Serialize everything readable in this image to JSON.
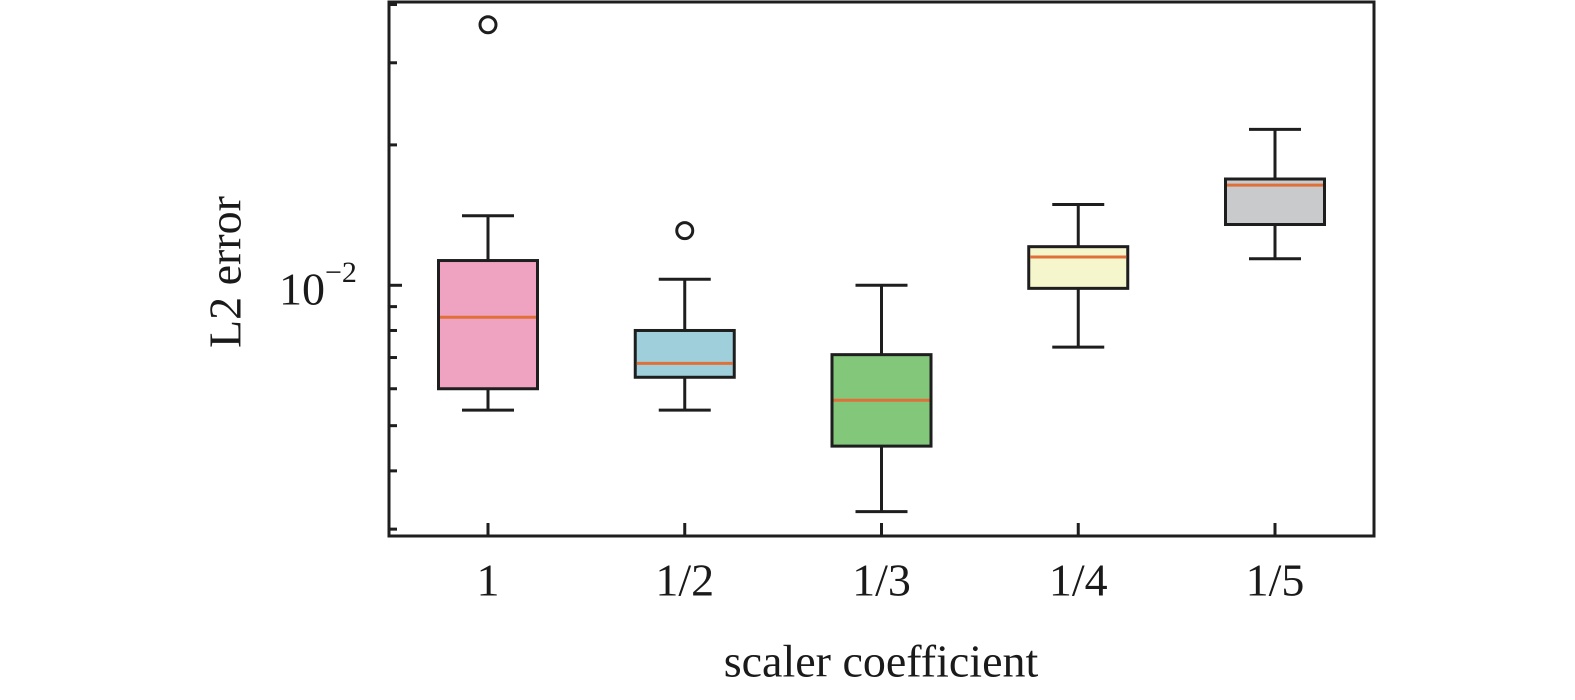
{
  "chart_data": {
    "type": "box",
    "title": "",
    "xlabel": "scaler coefficient",
    "ylabel": "L2 error",
    "yscale": "log",
    "ylim": [
      0.0029,
      0.0405
    ],
    "yticks_major": [
      {
        "value": 0.01,
        "label_base": "10",
        "label_exp": "−2"
      }
    ],
    "yticks_minor": [
      0.003,
      0.004,
      0.005,
      0.006,
      0.007,
      0.008,
      0.009,
      0.02,
      0.03,
      0.04
    ],
    "grid": false,
    "legend": null,
    "categories": [
      "1",
      "1/2",
      "1/3",
      "1/4",
      "1/5"
    ],
    "boxes": [
      {
        "label": "1",
        "whisker_low": 0.0054,
        "q1": 0.006,
        "median": 0.00854,
        "q3": 0.0113,
        "whisker_high": 0.0141,
        "outliers": [
          0.0362
        ],
        "color": "#f0a3c1"
      },
      {
        "label": "1/2",
        "whisker_low": 0.0054,
        "q1": 0.00635,
        "median": 0.0068,
        "q3": 0.008,
        "whisker_high": 0.0103,
        "outliers": [
          0.0131
        ],
        "color": "#9ecfda"
      },
      {
        "label": "1/3",
        "whisker_low": 0.00327,
        "q1": 0.00452,
        "median": 0.00567,
        "q3": 0.0071,
        "whisker_high": 0.01,
        "outliers": [],
        "color": "#82c77a"
      },
      {
        "label": "1/4",
        "whisker_low": 0.00737,
        "q1": 0.00985,
        "median": 0.0115,
        "q3": 0.0121,
        "whisker_high": 0.0149,
        "outliers": [],
        "color": "#f5f6cc"
      },
      {
        "label": "1/5",
        "whisker_low": 0.0114,
        "q1": 0.0135,
        "median": 0.0164,
        "q3": 0.0169,
        "whisker_high": 0.0216,
        "outliers": [],
        "color": "#c9cacc"
      }
    ],
    "median_color": "#e0703a",
    "edge_color": "#1e1e1e"
  }
}
